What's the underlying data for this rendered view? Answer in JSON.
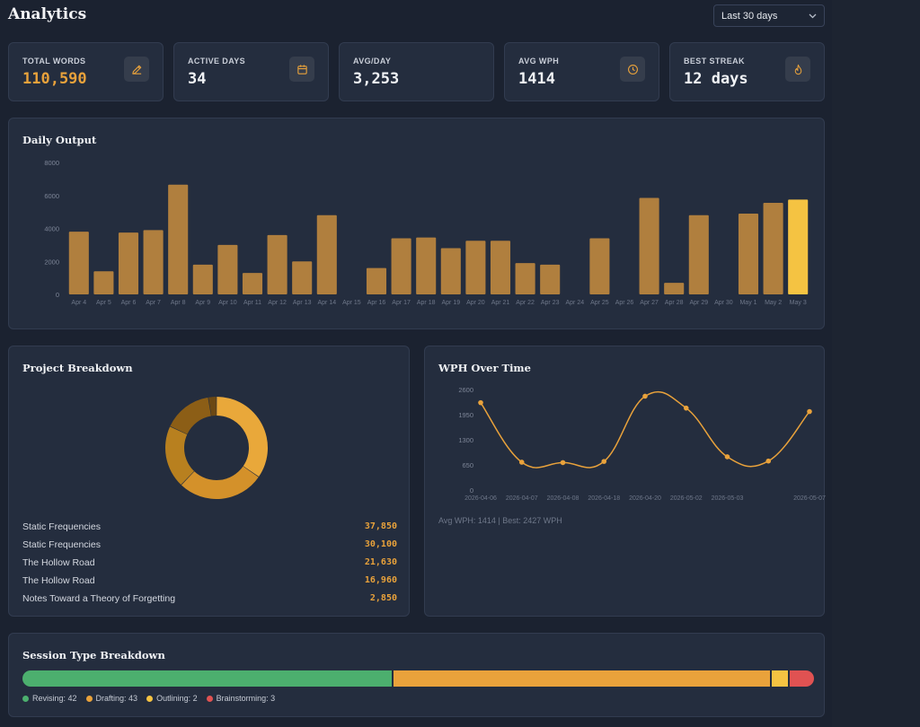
{
  "header": {
    "title": "Analytics",
    "range": {
      "selected": "Last 30 days"
    }
  },
  "stats": [
    {
      "label": "TOTAL WORDS",
      "value": "110,590",
      "icon": "pencil-icon",
      "accent": true
    },
    {
      "label": "ACTIVE DAYS",
      "value": "34",
      "icon": "calendar-icon",
      "accent": false
    },
    {
      "label": "AVG/DAY",
      "value": "3,253",
      "icon": "",
      "accent": false
    },
    {
      "label": "AVG WPH",
      "value": "1414",
      "icon": "clock-icon",
      "accent": false
    },
    {
      "label": "BEST STREAK",
      "value": "12 days",
      "icon": "flame-icon",
      "accent": false
    }
  ],
  "daily_output": {
    "title": "Daily Output"
  },
  "projects": {
    "title": "Project Breakdown",
    "items": [
      {
        "name": "Static Frequencies",
        "value": "37,850"
      },
      {
        "name": "Static Frequencies",
        "value": "30,100"
      },
      {
        "name": "The Hollow Road",
        "value": "21,630"
      },
      {
        "name": "The Hollow Road",
        "value": "16,960"
      },
      {
        "name": "Notes Toward a Theory of Forgetting",
        "value": "2,850"
      }
    ]
  },
  "wph": {
    "title": "WPH Over Time",
    "note": "Avg WPH: 1414 | Best: 2427 WPH"
  },
  "sessions": {
    "title": "Session Type Breakdown",
    "items": [
      {
        "label": "Revising: 42",
        "count": 42,
        "color": "#4caf6e"
      },
      {
        "label": "Drafting: 43",
        "count": 43,
        "color": "#e9a23b"
      },
      {
        "label": "Outlining: 2",
        "count": 2,
        "color": "#f5c342"
      },
      {
        "label": "Brainstorming: 3",
        "count": 3,
        "color": "#e05252"
      }
    ]
  },
  "chart_data": [
    {
      "type": "bar",
      "title": "Daily Output",
      "categories": [
        "Apr 4",
        "Apr 5",
        "Apr 6",
        "Apr 7",
        "Apr 8",
        "Apr 9",
        "Apr 10",
        "Apr 11",
        "Apr 12",
        "Apr 13",
        "Apr 14",
        "Apr 15",
        "Apr 16",
        "Apr 17",
        "Apr 18",
        "Apr 19",
        "Apr 20",
        "Apr 21",
        "Apr 22",
        "Apr 23",
        "Apr 24",
        "Apr 25",
        "Apr 26",
        "Apr 27",
        "Apr 28",
        "Apr 29",
        "Apr 30",
        "May 1",
        "May 2",
        "May 3"
      ],
      "values": [
        3800,
        1400,
        3750,
        3900,
        6650,
        1800,
        3000,
        1300,
        3600,
        2000,
        4800,
        0,
        1600,
        3400,
        3450,
        2800,
        3250,
        3250,
        1900,
        1800,
        0,
        3400,
        0,
        5850,
        700,
        4800,
        0,
        4900,
        5550,
        5750
      ],
      "ylim": [
        0,
        8000
      ],
      "yticks": [
        0,
        2000,
        4000,
        6000,
        8000
      ],
      "highlight_index": 29,
      "colors": {
        "bar": "#b07f3e",
        "highlight": "#f5c342"
      }
    },
    {
      "type": "pie",
      "title": "Project Breakdown",
      "labels": [
        "Static Frequencies",
        "Static Frequencies",
        "The Hollow Road",
        "The Hollow Road",
        "Notes Toward a Theory of Forgetting"
      ],
      "values": [
        37850,
        30100,
        21630,
        16960,
        2850
      ],
      "colors": [
        "#e9a83a",
        "#d4912a",
        "#b8801f",
        "#8c5e16",
        "#6b4814"
      ],
      "donut": true
    },
    {
      "type": "line",
      "title": "WPH Over Time",
      "x": [
        "2026-04-06",
        "2026-04-07",
        "2026-04-08",
        "2026-04-18",
        "2026-04-20",
        "2026-05-02",
        "2026-05-03",
        "",
        "2026-05-07"
      ],
      "values": [
        2260,
        720,
        710,
        740,
        2427,
        2120,
        860,
        750,
        2030
      ],
      "ylim": [
        0,
        2600
      ],
      "yticks": [
        0,
        650,
        1300,
        1950,
        2600
      ],
      "color": "#e9a23b"
    }
  ]
}
